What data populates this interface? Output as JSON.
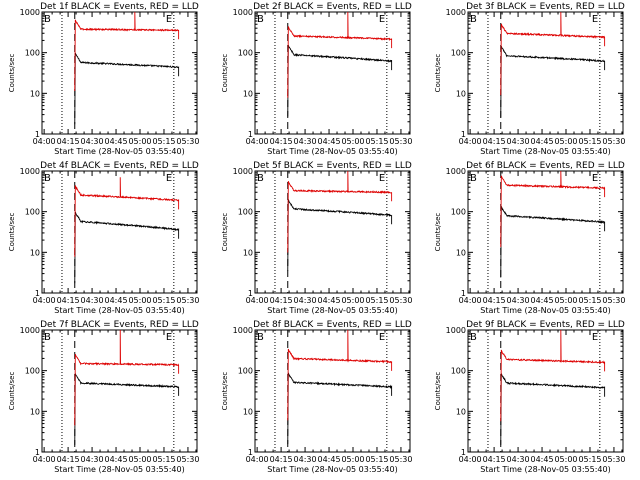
{
  "chart_data": [
    {
      "type": "line",
      "title": "Det 1f BLACK = Events, RED = LLD",
      "xlabel": "Start Time (28-Nov-05 03:55:40)",
      "ylabel": "Counts/sec",
      "xticks": [
        "04:00",
        "04:15",
        "04:30",
        "04:45",
        "05:00",
        "05:15",
        "05:30"
      ],
      "yticks": [
        "1",
        "10",
        "100",
        "1000"
      ],
      "ylim": [
        1,
        1000
      ],
      "ylog": true,
      "xlim_min": [
        3.0,
        100.0
      ],
      "markers": {
        "begin": "B",
        "end": "E"
      },
      "vlines_dotted_min": [
        15.5,
        85.5
      ],
      "vline_dashed_min": [
        23.5
      ],
      "series": [
        {
          "name": "Events",
          "color": "#000000",
          "x_start_min": 23.5,
          "x_end_min": 88.5,
          "start": 58,
          "end": 44,
          "spike_min": null,
          "spike_value": null
        },
        {
          "name": "LLD",
          "color": "#dd0000",
          "x_start_min": 23.5,
          "x_end_min": 88.5,
          "start": 380,
          "end": 355,
          "spike_min": 61,
          "spike_value": 1000
        }
      ]
    },
    {
      "type": "line",
      "title": "Det 2f BLACK = Events, RED = LLD",
      "xlabel": "Start Time (28-Nov-05 03:55:40)",
      "ylabel": "Counts/sec",
      "xticks": [
        "04:00",
        "04:15",
        "04:30",
        "04:45",
        "05:00",
        "05:15",
        "05:30"
      ],
      "yticks": [
        "1",
        "10",
        "100",
        "1000"
      ],
      "ylim": [
        1,
        1000
      ],
      "ylog": true,
      "xlim_min": [
        3.0,
        100.0
      ],
      "markers": {
        "begin": "B",
        "end": "E"
      },
      "vlines_dotted_min": [
        15.5,
        85.5
      ],
      "vline_dashed_min": [
        23.5
      ],
      "series": [
        {
          "name": "Events",
          "color": "#000000",
          "x_start_min": 23.5,
          "x_end_min": 88.5,
          "start": 90,
          "end": 62,
          "spike_min": null,
          "spike_value": null
        },
        {
          "name": "LLD",
          "color": "#dd0000",
          "x_start_min": 23.5,
          "x_end_min": 88.5,
          "start": 260,
          "end": 215,
          "spike_min": 61,
          "spike_value": 1000
        }
      ]
    },
    {
      "type": "line",
      "title": "Det 3f BLACK = Events, RED = LLD",
      "xlabel": "Start Time (28-Nov-05 03:55:40)",
      "ylabel": "Counts/sec",
      "xticks": [
        "04:00",
        "04:15",
        "04:30",
        "04:45",
        "05:00",
        "05:15",
        "05:30"
      ],
      "yticks": [
        "1",
        "10",
        "100",
        "1000"
      ],
      "ylim": [
        1,
        1000
      ],
      "ylog": true,
      "xlim_min": [
        3.0,
        100.0
      ],
      "markers": {
        "begin": "B",
        "end": "E"
      },
      "vlines_dotted_min": [
        15.5,
        85.5
      ],
      "vline_dashed_min": [
        23.5
      ],
      "series": [
        {
          "name": "Events",
          "color": "#000000",
          "x_start_min": 23.5,
          "x_end_min": 88.5,
          "start": 85,
          "end": 62,
          "spike_min": null,
          "spike_value": null
        },
        {
          "name": "LLD",
          "color": "#dd0000",
          "x_start_min": 23.5,
          "x_end_min": 88.5,
          "start": 300,
          "end": 240,
          "spike_min": 61,
          "spike_value": 1000
        }
      ]
    },
    {
      "type": "line",
      "title": "Det 4f BLACK = Events, RED = LLD",
      "xlabel": "Start Time (28-Nov-05 03:55:40)",
      "ylabel": "Counts/sec",
      "xticks": [
        "04:00",
        "04:15",
        "04:30",
        "04:45",
        "05:00",
        "05:15",
        "05:30"
      ],
      "yticks": [
        "1",
        "10",
        "100",
        "1000"
      ],
      "ylim": [
        1,
        1000
      ],
      "ylog": true,
      "xlim_min": [
        3.0,
        100.0
      ],
      "markers": {
        "begin": "B",
        "end": "E"
      },
      "vlines_dotted_min": [
        15.5,
        85.5
      ],
      "vline_dashed_min": [
        23.5
      ],
      "series": [
        {
          "name": "Events",
          "color": "#000000",
          "x_start_min": 23.5,
          "x_end_min": 88.5,
          "start": 58,
          "end": 36,
          "spike_min": null,
          "spike_value": null
        },
        {
          "name": "LLD",
          "color": "#dd0000",
          "x_start_min": 23.5,
          "x_end_min": 88.5,
          "start": 260,
          "end": 190,
          "spike_min": 52,
          "spike_value": 700
        }
      ]
    },
    {
      "type": "line",
      "title": "Det 5f BLACK = Events, RED = LLD",
      "xlabel": "Start Time (28-Nov-05 03:55:40)",
      "ylabel": "Counts/sec",
      "xticks": [
        "04:00",
        "04:15",
        "04:30",
        "04:45",
        "05:00",
        "05:15",
        "05:30"
      ],
      "yticks": [
        "1",
        "10",
        "100",
        "1000"
      ],
      "ylim": [
        1,
        1000
      ],
      "ylog": true,
      "xlim_min": [
        3.0,
        100.0
      ],
      "markers": {
        "begin": "B",
        "end": "E"
      },
      "vlines_dotted_min": [
        15.5,
        85.5
      ],
      "vline_dashed_min": [
        23.5
      ],
      "series": [
        {
          "name": "Events",
          "color": "#000000",
          "x_start_min": 23.5,
          "x_end_min": 88.5,
          "start": 118,
          "end": 82,
          "spike_min": null,
          "spike_value": null
        },
        {
          "name": "LLD",
          "color": "#dd0000",
          "x_start_min": 23.5,
          "x_end_min": 88.5,
          "start": 330,
          "end": 300,
          "spike_min": 61,
          "spike_value": 1000
        }
      ]
    },
    {
      "type": "line",
      "title": "Det 6f BLACK = Events, RED = LLD",
      "xlabel": "Start Time (28-Nov-05 03:55:40)",
      "ylabel": "Counts/sec",
      "xticks": [
        "04:00",
        "04:15",
        "04:30",
        "04:45",
        "05:00",
        "05:15",
        "05:30"
      ],
      "yticks": [
        "1",
        "10",
        "100",
        "1000"
      ],
      "ylim": [
        1,
        1000
      ],
      "ylog": true,
      "xlim_min": [
        3.0,
        100.0
      ],
      "markers": {
        "begin": "B",
        "end": "E"
      },
      "vlines_dotted_min": [
        15.5,
        85.5
      ],
      "vline_dashed_min": [
        23.5
      ],
      "series": [
        {
          "name": "Events",
          "color": "#000000",
          "x_start_min": 23.5,
          "x_end_min": 88.5,
          "start": 80,
          "end": 55,
          "spike_min": null,
          "spike_value": null
        },
        {
          "name": "LLD",
          "color": "#dd0000",
          "x_start_min": 23.5,
          "x_end_min": 88.5,
          "start": 450,
          "end": 380,
          "spike_min": 61,
          "spike_value": 1000
        }
      ]
    },
    {
      "type": "line",
      "title": "Det 7f BLACK = Events, RED = LLD",
      "xlabel": "Start Time (28-Nov-05 03:55:40)",
      "ylabel": "Counts/sec",
      "xticks": [
        "04:00",
        "04:15",
        "04:30",
        "04:45",
        "05:00",
        "05:15",
        "05:30"
      ],
      "yticks": [
        "1",
        "10",
        "100",
        "1000"
      ],
      "ylim": [
        1,
        1000
      ],
      "ylog": true,
      "xlim_min": [
        3.0,
        100.0
      ],
      "markers": {
        "begin": "B",
        "end": "E"
      },
      "vlines_dotted_min": [
        15.5,
        85.5
      ],
      "vline_dashed_min": [
        23.5
      ],
      "series": [
        {
          "name": "Events",
          "color": "#000000",
          "x_start_min": 23.5,
          "x_end_min": 88.5,
          "start": 50,
          "end": 40,
          "spike_min": null,
          "spike_value": null
        },
        {
          "name": "LLD",
          "color": "#dd0000",
          "x_start_min": 23.5,
          "x_end_min": 88.5,
          "start": 150,
          "end": 140,
          "spike_min": 52,
          "spike_value": 1000
        }
      ]
    },
    {
      "type": "line",
      "title": "Det 8f BLACK = Events, RED = LLD",
      "xlabel": "Start Time (28-Nov-05 03:55:40)",
      "ylabel": "Counts/sec",
      "xticks": [
        "04:00",
        "04:15",
        "04:30",
        "04:45",
        "05:00",
        "05:15",
        "05:30"
      ],
      "yticks": [
        "1",
        "10",
        "100",
        "1000"
      ],
      "ylim": [
        1,
        1000
      ],
      "ylog": true,
      "xlim_min": [
        3.0,
        100.0
      ],
      "markers": {
        "begin": "B",
        "end": "E"
      },
      "vlines_dotted_min": [
        15.5,
        85.5
      ],
      "vline_dashed_min": [
        23.5
      ],
      "series": [
        {
          "name": "Events",
          "color": "#000000",
          "x_start_min": 23.5,
          "x_end_min": 88.5,
          "start": 52,
          "end": 40,
          "spike_min": null,
          "spike_value": null
        },
        {
          "name": "LLD",
          "color": "#dd0000",
          "x_start_min": 23.5,
          "x_end_min": 88.5,
          "start": 200,
          "end": 165,
          "spike_min": 61,
          "spike_value": 1000
        }
      ]
    },
    {
      "type": "line",
      "title": "Det 9f BLACK = Events, RED = LLD",
      "xlabel": "Start Time (28-Nov-05 03:55:40)",
      "ylabel": "Counts/sec",
      "xticks": [
        "04:00",
        "04:15",
        "04:30",
        "04:45",
        "05:00",
        "05:15",
        "05:30"
      ],
      "yticks": [
        "1",
        "10",
        "100",
        "1000"
      ],
      "ylim": [
        1,
        1000
      ],
      "ylog": true,
      "xlim_min": [
        3.0,
        100.0
      ],
      "markers": {
        "begin": "B",
        "end": "E"
      },
      "vlines_dotted_min": [
        15.5,
        85.5
      ],
      "vline_dashed_min": [
        23.5
      ],
      "series": [
        {
          "name": "Events",
          "color": "#000000",
          "x_start_min": 23.5,
          "x_end_min": 88.5,
          "start": 50,
          "end": 38,
          "spike_min": null,
          "spike_value": null
        },
        {
          "name": "LLD",
          "color": "#dd0000",
          "x_start_min": 23.5,
          "x_end_min": 88.5,
          "start": 190,
          "end": 160,
          "spike_min": 61,
          "spike_value": 1000
        }
      ]
    }
  ]
}
